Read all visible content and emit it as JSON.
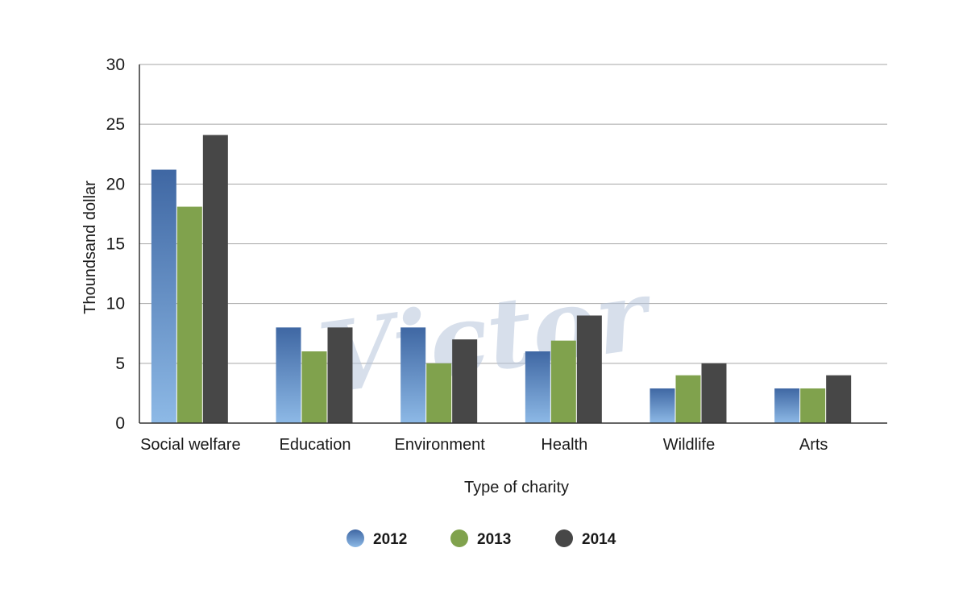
{
  "chart_data": {
    "type": "bar",
    "categories": [
      "Social welfare",
      "Education",
      "Environment",
      "Health",
      "Wildlife",
      "Arts"
    ],
    "series": [
      {
        "name": "2012",
        "values": [
          21.2,
          8,
          8,
          6,
          2.9,
          2.9
        ]
      },
      {
        "name": "2013",
        "values": [
          18.1,
          6,
          5,
          6.9,
          4,
          2.9
        ]
      },
      {
        "name": "2014",
        "values": [
          24.1,
          8,
          7,
          9,
          5,
          4
        ]
      }
    ],
    "xlabel": "Type of charity",
    "ylabel": "Thoundsand dollar",
    "ylim": [
      0,
      30
    ],
    "yticks": [
      0,
      5,
      10,
      15,
      20,
      25,
      30
    ],
    "grid": true,
    "legend_position": "bottom",
    "colors": {
      "2012_top": "#3f67a3",
      "2012_bottom": "#8db9e6",
      "2013": "#80a24d",
      "2014": "#474747"
    }
  },
  "watermark": "Victor"
}
